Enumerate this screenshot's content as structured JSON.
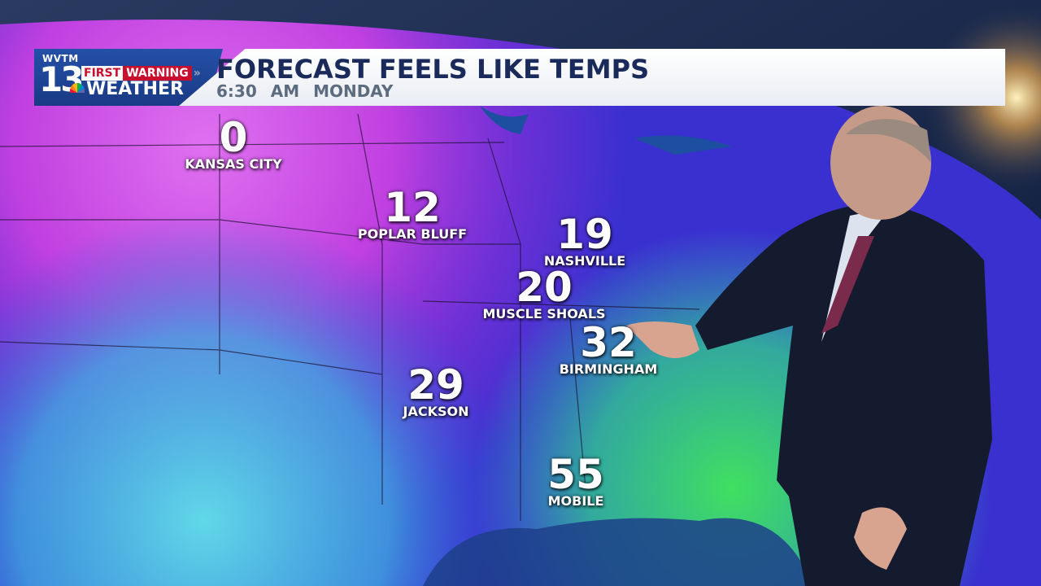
{
  "station": {
    "call_letters": "WVTM",
    "channel": "13",
    "brand_first": "FIRST",
    "brand_warning": "WARNING",
    "brand_weather": "WEATHER"
  },
  "header": {
    "title": "FORECAST FEELS LIKE TEMPS",
    "time": "6:30 AM",
    "day": "MONDAY"
  },
  "cities": [
    {
      "name": "KANSAS CITY",
      "temp": "0"
    },
    {
      "name": "POPLAR BLUFF",
      "temp": "12"
    },
    {
      "name": "NASHVILLE",
      "temp": "19"
    },
    {
      "name": "MUSCLE SHOALS",
      "temp": "20"
    },
    {
      "name": "BIRMINGHAM",
      "temp": "32"
    },
    {
      "name": "JACKSON",
      "temp": "29"
    },
    {
      "name": "MOBILE",
      "temp": "55"
    }
  ],
  "colors": {
    "banner_blue": "#1d3f8f",
    "title_navy": "#1a2a5a",
    "warning_red": "#c8102e",
    "coldest": "#d24fe0",
    "cold": "#3a2ad0",
    "cool": "#3fb8e0",
    "mild": "#3fd86a"
  }
}
